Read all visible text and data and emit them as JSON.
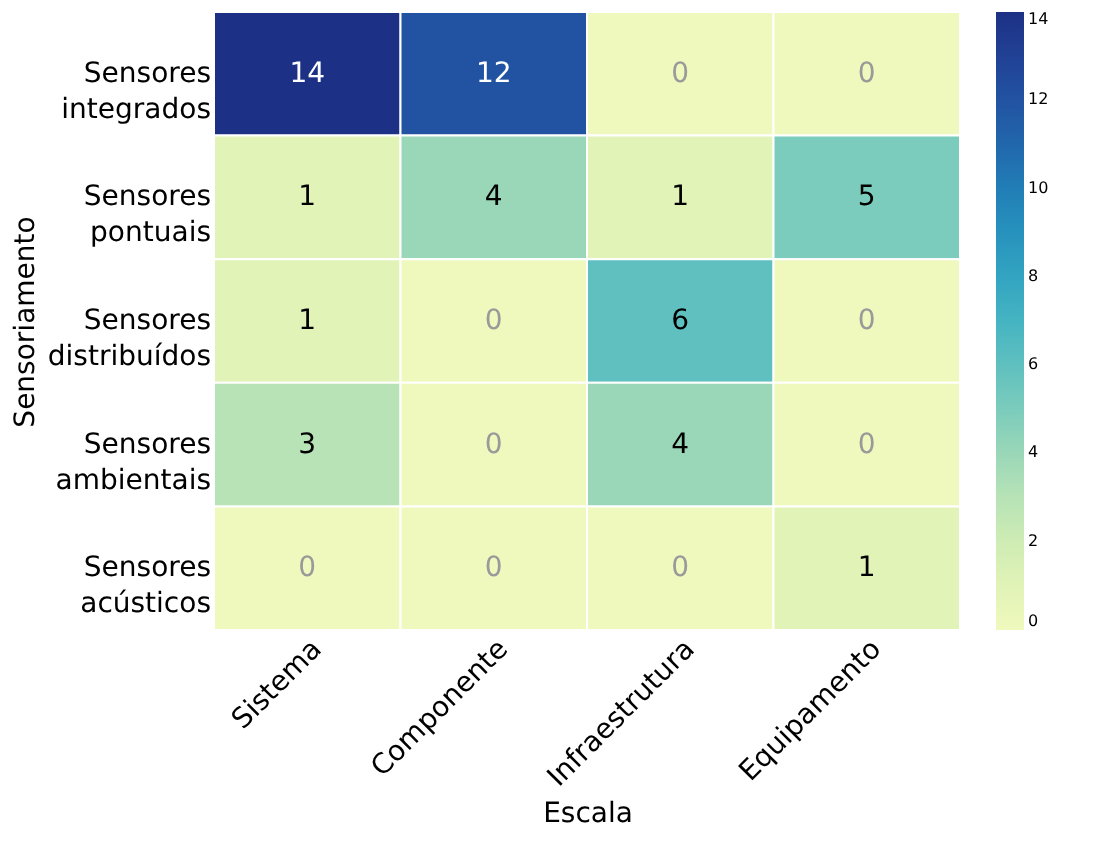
{
  "chart_data": {
    "type": "heatmap",
    "xlabel": "Escala",
    "ylabel": "Sensoriamento",
    "categories": [
      "Sistema",
      "Componente",
      "Infraestrutura",
      "Equipamento"
    ],
    "y_categories": [
      "Sensores integrados",
      "Sensores pontuais",
      "Sensores distribuídos",
      "Sensores ambientais",
      "Sensores acústicos"
    ],
    "cells": [
      [
        14,
        12,
        0,
        0
      ],
      [
        1,
        4,
        1,
        5
      ],
      [
        1,
        0,
        6,
        0
      ],
      [
        3,
        0,
        4,
        0
      ],
      [
        0,
        0,
        0,
        1
      ]
    ],
    "clim": [
      0,
      14
    ],
    "cticks": [
      0,
      2,
      4,
      6,
      8,
      10,
      12,
      14
    ],
    "data_labels": true,
    "grid": false
  }
}
